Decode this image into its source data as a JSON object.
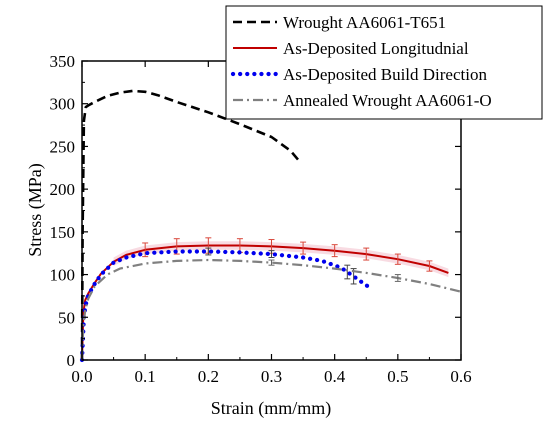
{
  "chart_data": {
    "type": "line",
    "title": "",
    "xlabel": "Strain (mm/mm)",
    "ylabel": "Stress (MPa)",
    "xlim": [
      0.0,
      0.6
    ],
    "ylim": [
      0,
      350
    ],
    "x_ticks": [
      "0.0",
      "0.1",
      "0.2",
      "0.3",
      "0.4",
      "0.5",
      "0.6"
    ],
    "y_ticks": [
      "0",
      "50",
      "100",
      "150",
      "200",
      "250",
      "300",
      "350"
    ],
    "grid": false,
    "legend_position": "top-right",
    "series": [
      {
        "name": "Wrought AA6061-T651",
        "color": "#000000",
        "style": "dashed",
        "x": [
          0.0,
          0.001,
          0.003,
          0.006,
          0.01,
          0.02,
          0.04,
          0.06,
          0.08,
          0.1,
          0.12,
          0.15,
          0.2,
          0.25,
          0.3,
          0.33,
          0.345
        ],
        "y": [
          0,
          150,
          280,
          296,
          298,
          302,
          309,
          313,
          315,
          314,
          310,
          302,
          290,
          276,
          261,
          245,
          232
        ]
      },
      {
        "name": "As-Deposited Longitudnial",
        "color": "#c00000",
        "style": "solid",
        "x": [
          0.0,
          0.002,
          0.005,
          0.01,
          0.02,
          0.03,
          0.05,
          0.07,
          0.1,
          0.15,
          0.2,
          0.25,
          0.3,
          0.35,
          0.4,
          0.45,
          0.5,
          0.55,
          0.58
        ],
        "y": [
          0,
          55,
          70,
          78,
          90,
          101,
          115,
          123,
          129,
          133,
          134,
          134,
          133,
          131,
          128,
          124,
          118,
          110,
          102
        ],
        "error_x": [
          0.1,
          0.15,
          0.2,
          0.25,
          0.3,
          0.35,
          0.4,
          0.45,
          0.5,
          0.55
        ],
        "error_pm": [
          8,
          9,
          9,
          8,
          8,
          7,
          7,
          7,
          6,
          6
        ]
      },
      {
        "name": "As-Deposited Build Direction",
        "color": "#0000ee",
        "style": "dotted",
        "x": [
          0.0,
          0.003,
          0.006,
          0.01,
          0.02,
          0.03,
          0.05,
          0.07,
          0.1,
          0.15,
          0.2,
          0.25,
          0.3,
          0.35,
          0.38,
          0.41,
          0.43,
          0.445,
          0.455
        ],
        "y": [
          0,
          50,
          65,
          76,
          89,
          100,
          114,
          120,
          125,
          127,
          127,
          126,
          124,
          120,
          116,
          108,
          98,
          90,
          85
        ],
        "error_x": [
          0.2,
          0.3,
          0.42,
          0.43
        ],
        "error_pm": [
          4,
          4,
          8,
          9
        ]
      },
      {
        "name": "Annealed Wrought AA6061-O",
        "color": "#808080",
        "style": "dashdot",
        "x": [
          0.0,
          0.002,
          0.005,
          0.01,
          0.02,
          0.04,
          0.06,
          0.1,
          0.15,
          0.2,
          0.25,
          0.3,
          0.35,
          0.4,
          0.45,
          0.5,
          0.55,
          0.6
        ],
        "y": [
          0,
          40,
          58,
          72,
          86,
          100,
          107,
          113,
          116,
          117,
          116,
          114,
          111,
          107,
          102,
          96,
          89,
          80
        ],
        "error_x": [
          0.3,
          0.5
        ],
        "error_pm": [
          3,
          4
        ]
      }
    ]
  }
}
